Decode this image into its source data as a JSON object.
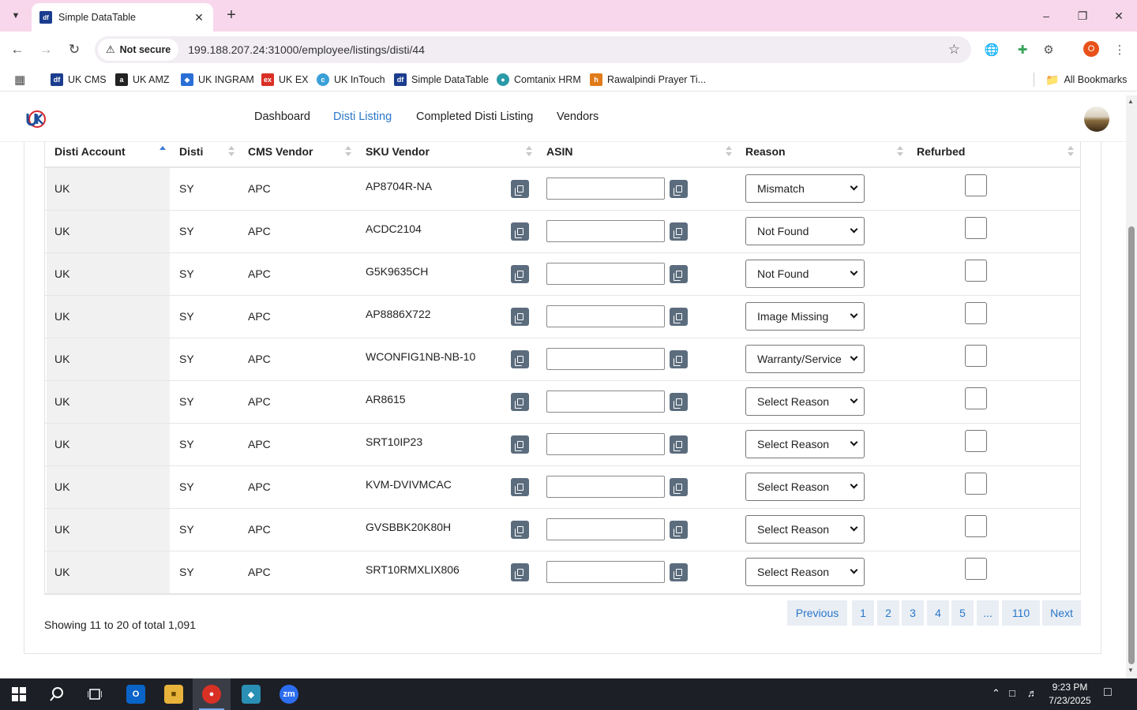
{
  "browser": {
    "tab_title": "Simple DataTable",
    "tab_favicon": "df",
    "security_label": "Not secure",
    "url": "199.188.207.24:31000/employee/listings/disti/44",
    "profile_initial": "O"
  },
  "bookmarks": [
    {
      "label": "UK CMS",
      "icon": "df",
      "color": "#1b3d8f"
    },
    {
      "label": "UK AMZ",
      "icon": "a",
      "color": "#222222"
    },
    {
      "label": "UK INGRAM",
      "icon": "tag-icon",
      "color": "#2a6fd6"
    },
    {
      "label": "UK EX",
      "icon": "ex",
      "color": "#d93025"
    },
    {
      "label": "UK InTouch",
      "icon": "c",
      "color": "#3aa0d8"
    },
    {
      "label": "Simple DataTable",
      "icon": "df",
      "color": "#1b3d8f"
    },
    {
      "label": "Comtanix HRM",
      "icon": "leaf-icon",
      "color": "#2b9aa8"
    },
    {
      "label": "Rawalpindi Prayer Ti...",
      "icon": "h",
      "color": "#e07b1a"
    }
  ],
  "all_bookmarks_label": "All Bookmarks",
  "nav": {
    "items": [
      "Dashboard",
      "Disti Listing",
      "Completed Disti Listing",
      "Vendors"
    ],
    "active": "Disti Listing"
  },
  "table": {
    "columns": [
      "Disti Account",
      "Disti",
      "CMS Vendor",
      "SKU Vendor",
      "ASIN",
      "Reason",
      "Refurbed"
    ],
    "sorted_column": "Disti Account",
    "rows": [
      {
        "account": "UK",
        "disti": "SY",
        "vendor": "APC",
        "sku": "AP8704R-NA",
        "asin": "",
        "reason": "Mismatch",
        "refurbed": false
      },
      {
        "account": "UK",
        "disti": "SY",
        "vendor": "APC",
        "sku": "ACDC2104",
        "asin": "",
        "reason": "Not Found",
        "refurbed": false
      },
      {
        "account": "UK",
        "disti": "SY",
        "vendor": "APC",
        "sku": "G5K9635CH",
        "asin": "",
        "reason": "Not Found",
        "refurbed": false
      },
      {
        "account": "UK",
        "disti": "SY",
        "vendor": "APC",
        "sku": "AP8886X722",
        "asin": "",
        "reason": "Image Missing",
        "refurbed": false
      },
      {
        "account": "UK",
        "disti": "SY",
        "vendor": "APC",
        "sku": "WCONFIG1NB-NB-10",
        "asin": "",
        "reason": "Warranty/Service",
        "refurbed": false
      },
      {
        "account": "UK",
        "disti": "SY",
        "vendor": "APC",
        "sku": "AR8615",
        "asin": "",
        "reason": "Select Reason",
        "refurbed": false
      },
      {
        "account": "UK",
        "disti": "SY",
        "vendor": "APC",
        "sku": "SRT10IP23",
        "asin": "",
        "reason": "Select Reason",
        "refurbed": false
      },
      {
        "account": "UK",
        "disti": "SY",
        "vendor": "APC",
        "sku": "KVM-DVIVMCAC",
        "asin": "",
        "reason": "Select Reason",
        "refurbed": false
      },
      {
        "account": "UK",
        "disti": "SY",
        "vendor": "APC",
        "sku": "GVSBBK20K80H",
        "asin": "",
        "reason": "Select Reason",
        "refurbed": false
      },
      {
        "account": "UK",
        "disti": "SY",
        "vendor": "APC",
        "sku": "SRT10RMXLIX806",
        "asin": "",
        "reason": "Select Reason",
        "refurbed": false
      }
    ]
  },
  "footer": {
    "showing": "Showing 11 to 20 of total 1,091",
    "pagination": [
      "Previous",
      "1",
      "2",
      "3",
      "4",
      "5",
      "...",
      "110",
      "Next"
    ]
  },
  "taskbar": {
    "time": "9:23 PM",
    "date": "7/23/2025"
  }
}
